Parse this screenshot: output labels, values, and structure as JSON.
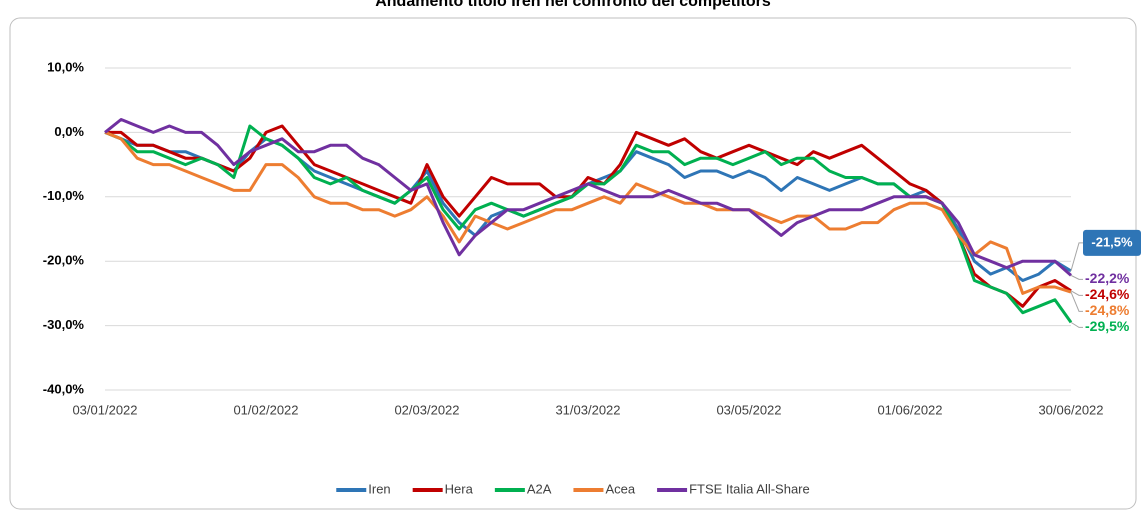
{
  "chart_data": {
    "type": "line",
    "title": "Andamento titolo Iren nel confronto dei competitors",
    "categories": [
      "03/01/2022",
      null,
      null,
      null,
      null,
      null,
      null,
      null,
      null,
      null,
      "01/02/2022",
      null,
      null,
      null,
      null,
      null,
      null,
      null,
      null,
      null,
      "02/03/2022",
      null,
      null,
      null,
      null,
      null,
      null,
      null,
      null,
      null,
      "31/03/2022",
      null,
      null,
      null,
      null,
      null,
      null,
      null,
      null,
      null,
      "03/05/2022",
      null,
      null,
      null,
      null,
      null,
      null,
      null,
      null,
      null,
      "01/06/2022",
      null,
      null,
      null,
      null,
      null,
      null,
      null,
      null,
      null,
      "30/06/2022"
    ],
    "ylim": [
      -40,
      10
    ],
    "yticks": [
      {
        "value": -40,
        "label": "-40,0%"
      },
      {
        "value": -30,
        "label": "-30,0%"
      },
      {
        "value": -20,
        "label": "-20,0%"
      },
      {
        "value": -10,
        "label": "-10,0%"
      },
      {
        "value": 0,
        "label": "0,0%"
      },
      {
        "value": 10,
        "label": "10,0%"
      }
    ],
    "grid": true,
    "legend": "bottom",
    "series": [
      {
        "name": "Iren",
        "color": "#2e75b6",
        "boxed_label": true,
        "values": [
          0,
          -1,
          -2,
          -2,
          -3,
          -3,
          -4,
          -5,
          -6,
          -3,
          -1,
          -2,
          -4,
          -6,
          -7,
          -8,
          -9,
          -10,
          -11,
          -9,
          -6,
          -11,
          -14,
          -16,
          -13,
          -12,
          -13,
          -12,
          -11,
          -10,
          -8,
          -7,
          -6,
          -3,
          -4,
          -5,
          -7,
          -6,
          -6,
          -7,
          -6,
          -7,
          -9,
          -7,
          -8,
          -9,
          -8,
          -7,
          -8,
          -8,
          -10,
          -9,
          -11,
          -15,
          -20,
          -22,
          -21,
          -23,
          -22,
          -20,
          -21.5
        ],
        "value_labels": [
          null,
          null,
          null,
          null,
          null,
          null,
          null,
          null,
          null,
          null,
          null,
          null,
          null,
          null,
          null,
          null,
          null,
          null,
          null,
          null,
          null,
          null,
          null,
          null,
          null,
          null,
          null,
          null,
          null,
          null,
          null,
          null,
          null,
          null,
          null,
          null,
          null,
          null,
          null,
          null,
          null,
          null,
          null,
          null,
          null,
          null,
          null,
          null,
          null,
          null,
          null,
          null,
          null,
          null,
          null,
          null,
          null,
          null,
          null,
          null,
          "-21,5%"
        ]
      },
      {
        "name": "Hera",
        "color": "#c00000",
        "values": [
          0,
          0,
          -2,
          -2,
          -3,
          -4,
          -4,
          -5,
          -6,
          -4,
          0,
          1,
          -2,
          -5,
          -6,
          -7,
          -8,
          -9,
          -10,
          -11,
          -5,
          -10,
          -13,
          -10,
          -7,
          -8,
          -8,
          -8,
          -10,
          -10,
          -7,
          -8,
          -5,
          0,
          -1,
          -2,
          -1,
          -3,
          -4,
          -3,
          -2,
          -3,
          -4,
          -5,
          -3,
          -4,
          -3,
          -2,
          -4,
          -6,
          -8,
          -9,
          -11,
          -16,
          -22,
          -24,
          -25,
          -27,
          -24,
          -23,
          -24.6
        ],
        "value_labels": [
          null,
          null,
          null,
          null,
          null,
          null,
          null,
          null,
          null,
          null,
          null,
          null,
          null,
          null,
          null,
          null,
          null,
          null,
          null,
          null,
          null,
          null,
          null,
          null,
          null,
          null,
          null,
          null,
          null,
          null,
          null,
          null,
          null,
          null,
          null,
          null,
          null,
          null,
          null,
          null,
          null,
          null,
          null,
          null,
          null,
          null,
          null,
          null,
          null,
          null,
          null,
          null,
          null,
          null,
          null,
          null,
          null,
          null,
          null,
          null,
          "-24,6%"
        ]
      },
      {
        "name": "A2A",
        "color": "#00b050",
        "values": [
          0,
          -1,
          -3,
          -3,
          -4,
          -5,
          -4,
          -5,
          -7,
          1,
          -1,
          -2,
          -4,
          -7,
          -8,
          -7,
          -9,
          -10,
          -11,
          -9,
          -7,
          -12,
          -15,
          -12,
          -11,
          -12,
          -13,
          -12,
          -11,
          -10,
          -8,
          -8,
          -6,
          -2,
          -3,
          -3,
          -5,
          -4,
          -4,
          -5,
          -4,
          -3,
          -5,
          -4,
          -4,
          -6,
          -7,
          -7,
          -8,
          -8,
          -10,
          -10,
          -11,
          -16,
          -23,
          -24,
          -25,
          -28,
          -27,
          -26,
          -29.5
        ],
        "value_labels": [
          null,
          null,
          null,
          null,
          null,
          null,
          null,
          null,
          null,
          null,
          null,
          null,
          null,
          null,
          null,
          null,
          null,
          null,
          null,
          null,
          null,
          null,
          null,
          null,
          null,
          null,
          null,
          null,
          null,
          null,
          null,
          null,
          null,
          null,
          null,
          null,
          null,
          null,
          null,
          null,
          null,
          null,
          null,
          null,
          null,
          null,
          null,
          null,
          null,
          null,
          null,
          null,
          null,
          null,
          null,
          null,
          null,
          null,
          null,
          null,
          "-29,5%"
        ]
      },
      {
        "name": "Acea",
        "color": "#ed7d31",
        "values": [
          0,
          -1,
          -4,
          -5,
          -5,
          -6,
          -7,
          -8,
          -9,
          -9,
          -5,
          -5,
          -7,
          -10,
          -11,
          -11,
          -12,
          -12,
          -13,
          -12,
          -10,
          -13,
          -17,
          -13,
          -14,
          -15,
          -14,
          -13,
          -12,
          -12,
          -11,
          -10,
          -11,
          -8,
          -9,
          -10,
          -11,
          -11,
          -12,
          -12,
          -12,
          -13,
          -14,
          -13,
          -13,
          -15,
          -15,
          -14,
          -14,
          -12,
          -11,
          -11,
          -12,
          -16,
          -19,
          -17,
          -18,
          -25,
          -24,
          -24,
          -24.8
        ],
        "value_labels": [
          null,
          null,
          null,
          null,
          null,
          null,
          null,
          null,
          null,
          null,
          null,
          null,
          null,
          null,
          null,
          null,
          null,
          null,
          null,
          null,
          null,
          null,
          null,
          null,
          null,
          null,
          null,
          null,
          null,
          null,
          null,
          null,
          null,
          null,
          null,
          null,
          null,
          null,
          null,
          null,
          null,
          null,
          null,
          null,
          null,
          null,
          null,
          null,
          null,
          null,
          null,
          null,
          null,
          null,
          null,
          null,
          null,
          null,
          null,
          null,
          "-24,8%"
        ]
      },
      {
        "name": "FTSE Italia All-Share",
        "color": "#7030a0",
        "values": [
          0,
          2,
          1,
          0,
          1,
          0,
          0,
          -2,
          -5,
          -3,
          -2,
          -1,
          -3,
          -3,
          -2,
          -2,
          -4,
          -5,
          -7,
          -9,
          -8,
          -14,
          -19,
          -16,
          -14,
          -12,
          -12,
          -11,
          -10,
          -9,
          -8,
          -9,
          -10,
          -10,
          -10,
          -9,
          -10,
          -11,
          -11,
          -12,
          -12,
          -14,
          -16,
          -14,
          -13,
          -12,
          -12,
          -12,
          -11,
          -10,
          -10,
          -10,
          -11,
          -14,
          -19,
          -20,
          -21,
          -20,
          -20,
          -20,
          -22.2
        ],
        "value_labels": [
          null,
          null,
          null,
          null,
          null,
          null,
          null,
          null,
          null,
          null,
          null,
          null,
          null,
          null,
          null,
          null,
          null,
          null,
          null,
          null,
          null,
          null,
          null,
          null,
          null,
          null,
          null,
          null,
          null,
          null,
          null,
          null,
          null,
          null,
          null,
          null,
          null,
          null,
          null,
          null,
          null,
          null,
          null,
          null,
          null,
          null,
          null,
          null,
          null,
          null,
          null,
          null,
          null,
          null,
          null,
          null,
          null,
          null,
          null,
          null,
          "-22,2%"
        ]
      }
    ]
  }
}
